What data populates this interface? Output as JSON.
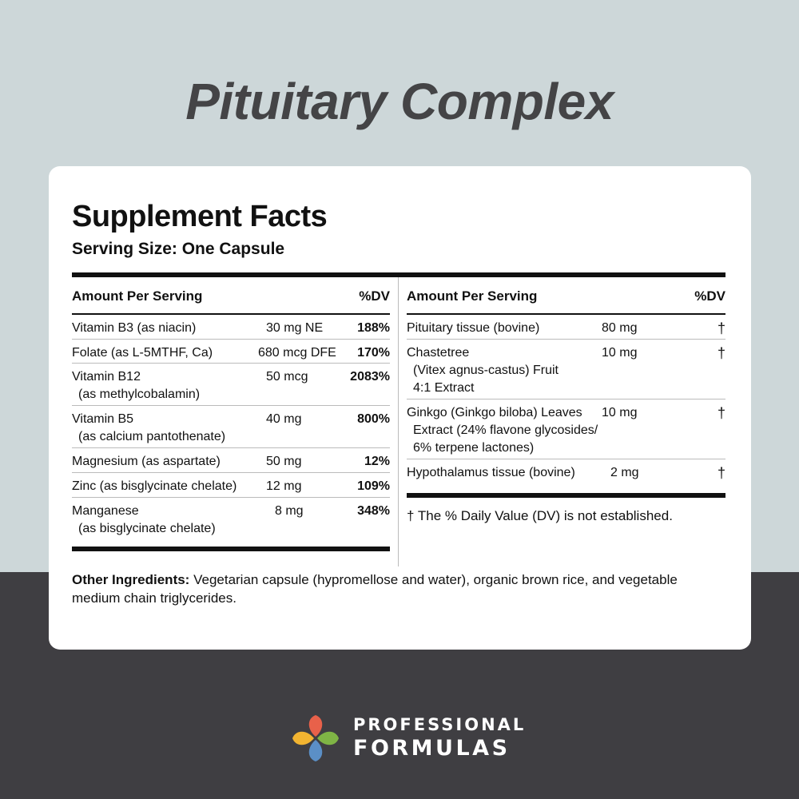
{
  "product_title": "Pituitary Complex",
  "facts": {
    "title": "Supplement Facts",
    "serving_size": "Serving Size: One Capsule",
    "header_amount": "Amount Per Serving",
    "header_dv": "%DV",
    "left_rows": [
      {
        "name": "Vitamin B3 (as niacin)",
        "sub": "",
        "amount": "30 mg NE",
        "dv": "188%"
      },
      {
        "name": "Folate (as L-5MTHF, Ca)",
        "sub": "",
        "amount": "680 mcg DFE",
        "dv": "170%"
      },
      {
        "name": "Vitamin B12",
        "sub": "(as methylcobalamin)",
        "amount": "50 mcg",
        "dv": "2083%"
      },
      {
        "name": "Vitamin B5",
        "sub": "(as calcium pantothenate)",
        "amount": "40 mg",
        "dv": "800%"
      },
      {
        "name": "Magnesium (as aspartate)",
        "sub": "",
        "amount": "50 mg",
        "dv": "12%"
      },
      {
        "name": "Zinc (as bisglycinate chelate)",
        "sub": "",
        "amount": "12 mg",
        "dv": "109%"
      },
      {
        "name": "Manganese",
        "sub": "(as bisglycinate chelate)",
        "amount": "8 mg",
        "dv": "348%"
      }
    ],
    "right_rows": [
      {
        "name": "Pituitary tissue (bovine)",
        "sub1": "",
        "sub2": "",
        "amount": "80 mg",
        "dv": "†"
      },
      {
        "name": "Chastetree",
        "sub1": "(Vitex agnus-castus) Fruit",
        "sub2": "4:1 Extract",
        "amount": "10 mg",
        "dv": "†"
      },
      {
        "name": "Ginkgo (Ginkgo biloba) Leaves",
        "sub1": "Extract (24% flavone glycosides/",
        "sub2": "6% terpene lactones)",
        "amount": "10 mg",
        "dv": "†"
      },
      {
        "name": "Hypothalamus tissue (bovine)",
        "sub1": "",
        "sub2": "",
        "amount": "2 mg",
        "dv": "†"
      }
    ],
    "footnote": "† The % Daily Value (DV) is not established.",
    "other_label": "Other Ingredients:",
    "other_text": " Vegetarian capsule (hypromellose and water), organic brown rice, and vegetable medium chain triglycerides."
  },
  "brand": {
    "line1": "PROFESSIONAL",
    "line2": "FORMULAS",
    "colors": {
      "red": "#e8614a",
      "green": "#7fb445",
      "yellow": "#f2b431",
      "blue": "#5b8fc6"
    }
  }
}
